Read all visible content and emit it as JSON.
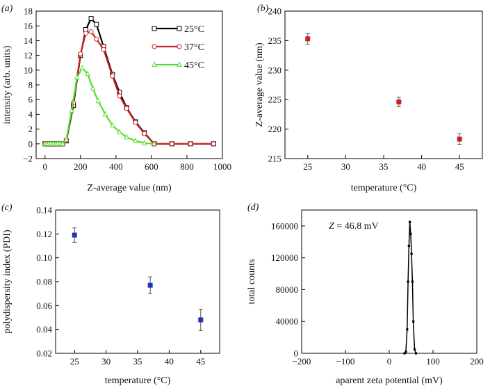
{
  "chart_data": [
    {
      "type": "line",
      "panel_label": "(a)",
      "xlabel": "Z-average value (nm)",
      "ylabel": "intensity (arb. units)",
      "xlim": [
        -50,
        1000
      ],
      "ylim": [
        -2,
        18
      ],
      "xticks": [
        0,
        200,
        400,
        600,
        800,
        1000
      ],
      "yticks": [
        -2,
        0,
        2,
        4,
        6,
        8,
        10,
        12,
        14,
        16,
        18
      ],
      "legend_position": "top-right",
      "series": [
        {
          "name": "25°C",
          "color": "#000000",
          "marker": "square",
          "x": [
            0,
            10,
            20,
            30,
            40,
            50,
            60,
            70,
            80,
            90,
            100,
            120,
            160,
            200,
            230,
            260,
            290,
            330,
            380,
            420,
            460,
            510,
            560,
            615,
            715,
            820,
            950
          ],
          "y": [
            0,
            0,
            0,
            0,
            0,
            0,
            0,
            0,
            0,
            0,
            0,
            0.4,
            5.2,
            12.0,
            15.5,
            17.0,
            16.2,
            13.2,
            9.4,
            7.0,
            4.9,
            3.0,
            1.5,
            0,
            0,
            0,
            0
          ]
        },
        {
          "name": "37°C",
          "color": "#cc2222",
          "marker": "circle",
          "x": [
            0,
            10,
            20,
            30,
            40,
            50,
            60,
            70,
            80,
            90,
            100,
            120,
            160,
            200,
            230,
            260,
            290,
            330,
            380,
            420,
            460,
            510,
            560,
            615,
            715,
            820,
            950
          ],
          "y": [
            0,
            0,
            0,
            0,
            0,
            0,
            0,
            0,
            0,
            0,
            0,
            0.5,
            5.6,
            12.2,
            15.0,
            15.2,
            14.2,
            12.8,
            9.2,
            6.5,
            4.8,
            2.9,
            1.4,
            0,
            0,
            0,
            0
          ]
        },
        {
          "name": "45°C",
          "color": "#55dd33",
          "marker": "triangle",
          "x": [
            0,
            10,
            20,
            30,
            40,
            50,
            60,
            70,
            80,
            90,
            100,
            120,
            150,
            180,
            210,
            240,
            270,
            300,
            340,
            380,
            420,
            460,
            510,
            560,
            615
          ],
          "y": [
            0,
            0,
            0,
            0,
            0,
            0,
            0,
            0,
            0,
            0,
            0,
            0.6,
            4.5,
            9.0,
            10.3,
            9.5,
            7.5,
            5.8,
            4.0,
            2.5,
            1.6,
            0.9,
            0.4,
            0.1,
            0
          ]
        }
      ]
    },
    {
      "type": "scatter",
      "panel_label": "(b)",
      "xlabel": "temperature (°C)",
      "ylabel": "Z-average value (nm)",
      "xlim": [
        22,
        48
      ],
      "ylim": [
        215,
        240
      ],
      "xticks": [
        25,
        30,
        35,
        40,
        45
      ],
      "yticks": [
        215,
        220,
        225,
        230,
        235,
        240
      ],
      "color": "#cc2222",
      "marker": "square",
      "x": [
        25,
        37,
        45
      ],
      "y": [
        235.3,
        224.6,
        218.3
      ],
      "yerr": [
        0.9,
        0.8,
        0.9
      ]
    },
    {
      "type": "scatter",
      "panel_label": "(c)",
      "xlabel": "temperature (°C)",
      "ylabel": "polydispersity index (PDI)",
      "xlim": [
        22,
        48
      ],
      "ylim": [
        0.02,
        0.14
      ],
      "xticks": [
        25,
        30,
        35,
        40,
        45
      ],
      "yticks": [
        0.02,
        0.04,
        0.06,
        0.08,
        0.1,
        0.12,
        0.14
      ],
      "tick_labels_y": [
        "0.02",
        "0.04",
        "0.06",
        "0.08",
        "0.10",
        "0.12",
        "0.14"
      ],
      "color": "#2233bb",
      "marker": "square",
      "x": [
        25,
        37,
        45
      ],
      "y": [
        0.119,
        0.077,
        0.048
      ],
      "yerr": [
        0.006,
        0.007,
        0.009
      ]
    },
    {
      "type": "line",
      "panel_label": "(d)",
      "xlabel": "aparent zeta potential (mV)",
      "ylabel": "total counts",
      "xlim": [
        -200,
        200
      ],
      "ylim": [
        0,
        180000
      ],
      "xticks": [
        -200,
        -100,
        0,
        100,
        200
      ],
      "tick_labels_x": [
        "−200",
        "−100",
        "0",
        "100",
        "200"
      ],
      "yticks": [
        0,
        40000,
        80000,
        120000,
        160000
      ],
      "annotation_var": "Z",
      "annotation_rest": " = 46.8 mV",
      "color": "#000000",
      "marker": "square",
      "x": [
        35,
        38,
        41,
        43,
        45,
        47,
        49,
        51,
        53,
        55,
        58,
        61
      ],
      "y": [
        0,
        2000,
        30000,
        90000,
        135000,
        165000,
        150000,
        125000,
        90000,
        40000,
        5000,
        0
      ]
    }
  ]
}
